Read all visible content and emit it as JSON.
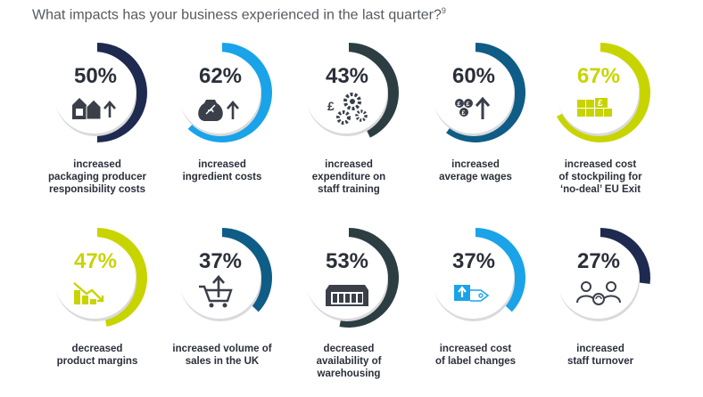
{
  "title": "What impacts has your business experienced in the last quarter?",
  "title_footnote": "9",
  "chart_data": {
    "type": "donut-grid",
    "title": "What impacts has your business experienced in the last quarter?",
    "items": [
      {
        "value": 50,
        "label": "50%",
        "lines": [
          "increased",
          "packaging producer",
          "responsibility costs"
        ],
        "color": "#1e2a4f",
        "icon": "packaging-icon"
      },
      {
        "value": 62,
        "label": "62%",
        "lines": [
          "increased",
          "ingredient costs"
        ],
        "color": "#1aa3e8",
        "icon": "ingredient-sack-icon"
      },
      {
        "value": 43,
        "label": "43%",
        "lines": [
          "increased",
          "expenditure on",
          "staff training"
        ],
        "color": "#2d3e42",
        "icon": "gears-pound-icon"
      },
      {
        "value": 60,
        "label": "60%",
        "lines": [
          "increased",
          "average wages"
        ],
        "color": "#0f5c86",
        "icon": "coins-up-icon"
      },
      {
        "value": 67,
        "label": "67%",
        "lines": [
          "increased cost",
          "of stockpiling for",
          "‘no-deal’ EU Exit"
        ],
        "color": "#c8d400",
        "icon": "stockpile-boxes-icon"
      },
      {
        "value": 47,
        "label": "47%",
        "lines": [
          "decreased",
          "product margins"
        ],
        "color": "#c8d400",
        "icon": "margin-decline-icon"
      },
      {
        "value": 37,
        "label": "37%",
        "lines": [
          "increased volume of",
          "sales in the UK"
        ],
        "color": "#0f5c86",
        "icon": "shopping-cart-icon"
      },
      {
        "value": 53,
        "label": "53%",
        "lines": [
          "decreased",
          "availability of",
          "warehousing"
        ],
        "color": "#2d3e42",
        "icon": "warehouse-icon"
      },
      {
        "value": 37,
        "label": "37%",
        "lines": [
          "increased cost",
          "of label changes"
        ],
        "color": "#1aa3e8",
        "icon": "label-tag-icon"
      },
      {
        "value": 27,
        "label": "27%",
        "lines": [
          "increased",
          "staff turnover"
        ],
        "color": "#1e2a4f",
        "icon": "staff-turnover-icon"
      }
    ]
  }
}
